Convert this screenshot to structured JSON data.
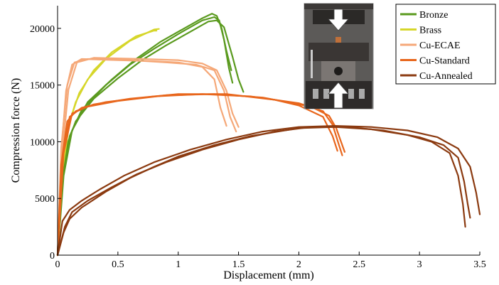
{
  "chart_data": {
    "type": "line",
    "xlabel": "Displacement (mm)",
    "ylabel": "Compression force (N)",
    "xlim": [
      0,
      3.5
    ],
    "ylim": [
      0,
      22000
    ],
    "xticks": [
      "0",
      "0.5",
      "1",
      "1.5",
      "2",
      "2.5",
      "3",
      "3.5"
    ],
    "yticks": [
      "0",
      "5000",
      "10000",
      "15000",
      "20000"
    ],
    "legend_position": "top-right",
    "inset": "photo of compression test fixture with arrows",
    "series": [
      {
        "name": "Bronze",
        "color": "#5a9a1e",
        "curves": [
          [
            [
              0,
              0
            ],
            [
              0.03,
              6000
            ],
            [
              0.08,
              9800
            ],
            [
              0.15,
              11800
            ],
            [
              0.3,
              13800
            ],
            [
              0.5,
              15600
            ],
            [
              0.7,
              17200
            ],
            [
              0.9,
              18500
            ],
            [
              1.1,
              19700
            ],
            [
              1.25,
              20600
            ],
            [
              1.32,
              20700
            ],
            [
              1.38,
              20100
            ],
            [
              1.45,
              17500
            ],
            [
              1.5,
              15500
            ],
            [
              1.54,
              14400
            ]
          ],
          [
            [
              0,
              0
            ],
            [
              0.04,
              6500
            ],
            [
              0.1,
              10500
            ],
            [
              0.2,
              12800
            ],
            [
              0.4,
              15000
            ],
            [
              0.6,
              16800
            ],
            [
              0.8,
              18200
            ],
            [
              1.0,
              19500
            ],
            [
              1.2,
              20700
            ],
            [
              1.3,
              21000
            ],
            [
              1.34,
              20700
            ],
            [
              1.38,
              19000
            ],
            [
              1.42,
              16500
            ],
            [
              1.45,
              15200
            ]
          ],
          [
            [
              0,
              0
            ],
            [
              0.05,
              7000
            ],
            [
              0.12,
              11000
            ],
            [
              0.25,
              13500
            ],
            [
              0.45,
              15500
            ],
            [
              0.65,
              17300
            ],
            [
              0.85,
              18800
            ],
            [
              1.05,
              20000
            ],
            [
              1.2,
              20900
            ],
            [
              1.28,
              21300
            ],
            [
              1.32,
              21100
            ],
            [
              1.36,
              20000
            ],
            [
              1.4,
              18000
            ],
            [
              1.44,
              16300
            ]
          ]
        ]
      },
      {
        "name": "Brass",
        "color": "#d6d62a",
        "curves": [
          [
            [
              0,
              0
            ],
            [
              0.03,
              7000
            ],
            [
              0.08,
              11000
            ],
            [
              0.15,
              13500
            ],
            [
              0.25,
              15500
            ],
            [
              0.4,
              17300
            ],
            [
              0.6,
              18900
            ],
            [
              0.8,
              19900
            ],
            [
              0.84,
              19950
            ]
          ],
          [
            [
              0,
              0
            ],
            [
              0.04,
              7500
            ],
            [
              0.1,
              11800
            ],
            [
              0.18,
              14300
            ],
            [
              0.3,
              16300
            ],
            [
              0.45,
              17900
            ],
            [
              0.65,
              19300
            ],
            [
              0.8,
              19800
            ],
            [
              0.82,
              19800
            ]
          ]
        ]
      },
      {
        "name": "Cu-ECAE",
        "color": "#f5a878",
        "curves": [
          [
            [
              0,
              0
            ],
            [
              0.03,
              9000
            ],
            [
              0.07,
              14500
            ],
            [
              0.12,
              16800
            ],
            [
              0.2,
              17300
            ],
            [
              0.5,
              17200
            ],
            [
              0.8,
              17100
            ],
            [
              1.0,
              17000
            ],
            [
              1.2,
              16600
            ],
            [
              1.3,
              15500
            ],
            [
              1.35,
              13000
            ],
            [
              1.4,
              11400
            ]
          ],
          [
            [
              0,
              0
            ],
            [
              0.03,
              9500
            ],
            [
              0.08,
              15000
            ],
            [
              0.14,
              17000
            ],
            [
              0.25,
              17300
            ],
            [
              0.6,
              17200
            ],
            [
              0.9,
              17000
            ],
            [
              1.15,
              16800
            ],
            [
              1.3,
              16300
            ],
            [
              1.38,
              14500
            ],
            [
              1.43,
              12200
            ],
            [
              1.48,
              10900
            ]
          ],
          [
            [
              0,
              0
            ],
            [
              0.04,
              9200
            ],
            [
              0.09,
              14600
            ],
            [
              0.16,
              17000
            ],
            [
              0.3,
              17400
            ],
            [
              0.7,
              17300
            ],
            [
              1.0,
              17200
            ],
            [
              1.2,
              16900
            ],
            [
              1.32,
              16300
            ],
            [
              1.4,
              14500
            ],
            [
              1.45,
              12500
            ],
            [
              1.5,
              11300
            ]
          ]
        ]
      },
      {
        "name": "Cu-Standard",
        "color": "#e8661c",
        "curves": [
          [
            [
              0,
              0
            ],
            [
              0.03,
              8000
            ],
            [
              0.08,
              11800
            ],
            [
              0.15,
              12700
            ],
            [
              0.3,
              13300
            ],
            [
              0.6,
              13800
            ],
            [
              1.0,
              14200
            ],
            [
              1.4,
              14200
            ],
            [
              1.8,
              13700
            ],
            [
              2.0,
              13200
            ],
            [
              2.2,
              12200
            ],
            [
              2.28,
              10500
            ],
            [
              2.32,
              9200
            ]
          ],
          [
            [
              0,
              0
            ],
            [
              0.04,
              8500
            ],
            [
              0.1,
              12200
            ],
            [
              0.2,
              13000
            ],
            [
              0.4,
              13500
            ],
            [
              0.8,
              14000
            ],
            [
              1.2,
              14200
            ],
            [
              1.6,
              14000
            ],
            [
              2.0,
              13400
            ],
            [
              2.2,
              12700
            ],
            [
              2.28,
              11500
            ],
            [
              2.33,
              9800
            ],
            [
              2.36,
              8800
            ]
          ],
          [
            [
              0,
              0
            ],
            [
              0.05,
              9000
            ],
            [
              0.12,
              12500
            ],
            [
              0.25,
              13100
            ],
            [
              0.5,
              13600
            ],
            [
              0.9,
              14100
            ],
            [
              1.3,
              14200
            ],
            [
              1.7,
              13900
            ],
            [
              2.1,
              13100
            ],
            [
              2.25,
              12300
            ],
            [
              2.31,
              11200
            ],
            [
              2.35,
              10000
            ],
            [
              2.38,
              9100
            ]
          ]
        ]
      },
      {
        "name": "Cu-Annealed",
        "color": "#8b3a10",
        "curves": [
          [
            [
              0,
              0
            ],
            [
              0.05,
              2000
            ],
            [
              0.1,
              3200
            ],
            [
              0.2,
              4200
            ],
            [
              0.4,
              5600
            ],
            [
              0.6,
              6800
            ],
            [
              0.8,
              7800
            ],
            [
              1.0,
              8700
            ],
            [
              1.3,
              9700
            ],
            [
              1.6,
              10500
            ],
            [
              2.0,
              11200
            ],
            [
              2.3,
              11300
            ],
            [
              2.6,
              11100
            ],
            [
              2.9,
              10600
            ],
            [
              3.1,
              10000
            ],
            [
              3.25,
              9000
            ],
            [
              3.32,
              7000
            ],
            [
              3.36,
              4500
            ],
            [
              3.38,
              2500
            ]
          ],
          [
            [
              0,
              0
            ],
            [
              0.06,
              2500
            ],
            [
              0.12,
              3800
            ],
            [
              0.25,
              4800
            ],
            [
              0.45,
              6000
            ],
            [
              0.65,
              7100
            ],
            [
              0.9,
              8200
            ],
            [
              1.2,
              9300
            ],
            [
              1.5,
              10200
            ],
            [
              1.8,
              10900
            ],
            [
              2.1,
              11300
            ],
            [
              2.4,
              11300
            ],
            [
              2.7,
              11000
            ],
            [
              3.0,
              10400
            ],
            [
              3.2,
              9700
            ],
            [
              3.32,
              8600
            ],
            [
              3.37,
              6500
            ],
            [
              3.4,
              4500
            ],
            [
              3.42,
              3300
            ]
          ],
          [
            [
              0,
              0
            ],
            [
              0.04,
              3000
            ],
            [
              0.1,
              4000
            ],
            [
              0.2,
              4800
            ],
            [
              0.35,
              5800
            ],
            [
              0.55,
              7000
            ],
            [
              0.8,
              8200
            ],
            [
              1.1,
              9300
            ],
            [
              1.4,
              10200
            ],
            [
              1.7,
              10900
            ],
            [
              2.0,
              11300
            ],
            [
              2.3,
              11400
            ],
            [
              2.6,
              11300
            ],
            [
              2.9,
              11000
            ],
            [
              3.15,
              10400
            ],
            [
              3.32,
              9400
            ],
            [
              3.42,
              7800
            ],
            [
              3.47,
              5500
            ],
            [
              3.5,
              3600
            ]
          ]
        ]
      }
    ]
  }
}
